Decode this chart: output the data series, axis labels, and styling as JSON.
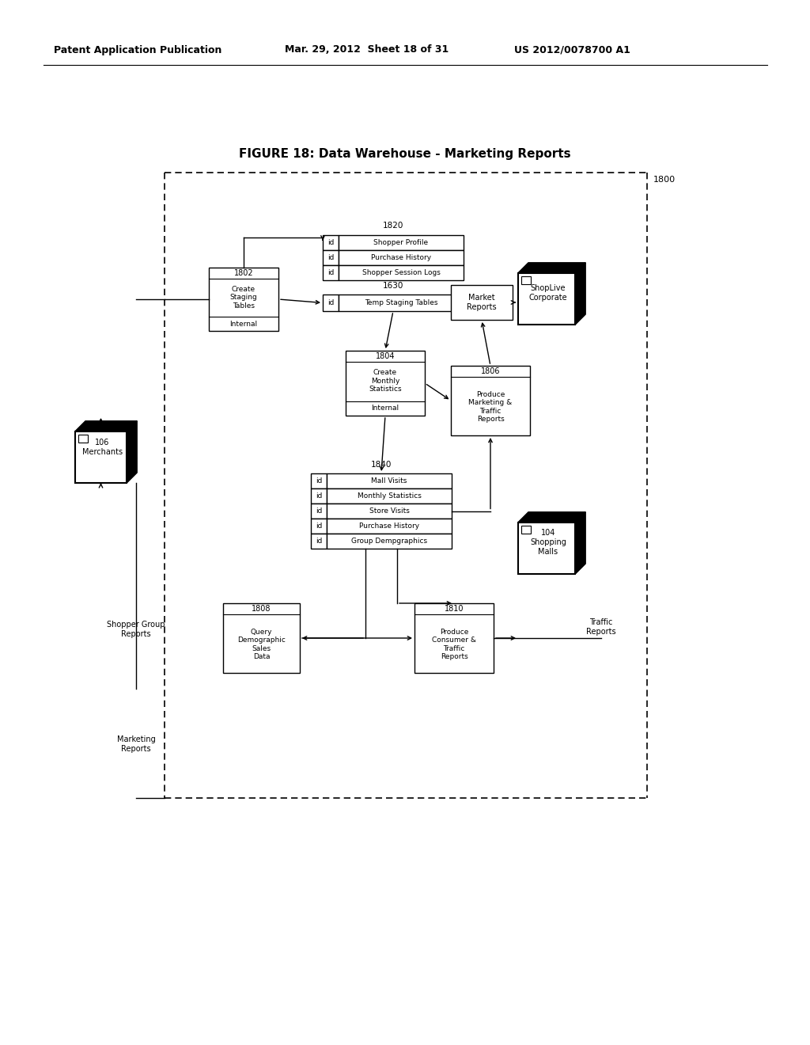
{
  "header_left": "Patent Application Publication",
  "header_mid": "Mar. 29, 2012  Sheet 18 of 31",
  "header_right": "US 2012/0078700 A1",
  "figure_title": "FIGURE 18: Data Warehouse - Marketing Reports",
  "bg_color": "#ffffff",
  "outer_label": "1800",
  "db1820_label": "1820",
  "db1820_rows": [
    "Shopper Profile",
    "Purchase History",
    "Shopper Session Logs"
  ],
  "db1630_label": "1630",
  "db1630_rows": [
    "Temp Staging Tables"
  ],
  "b1802_label": "1802",
  "b1802_text": "Create\nStaging\nTables",
  "b1802_footer": "Internal",
  "b1804_label": "1804",
  "b1804_text": "Create\nMonthly\nStatistics",
  "b1804_footer": "Internal",
  "b1806_label": "1806",
  "b1806_text": "Produce\nMarketing &\nTraffic\nReports",
  "mr_text": "Market\nReports",
  "db1840_label": "1840",
  "db1840_rows": [
    "Mall Visits",
    "Monthly Statistics",
    "Store Visits",
    "Purchase History",
    "Group Dempgraphics"
  ],
  "b1808_label": "1808",
  "b1808_text": "Query\nDemographic\nSales\nData",
  "b1810_label": "1810",
  "b1810_text": "Produce\nConsumer &\nTraffic\nReports",
  "lbl_merchants": "106\nMerchants",
  "lbl_shoplive": "ShopLive\nCorporate",
  "lbl_shopping": "104\nShopping\nMalls",
  "lbl_shopper_group": "Shopper Group\nReports",
  "lbl_marketing": "Marketing\nReports",
  "lbl_traffic": "Traffic\nReports"
}
